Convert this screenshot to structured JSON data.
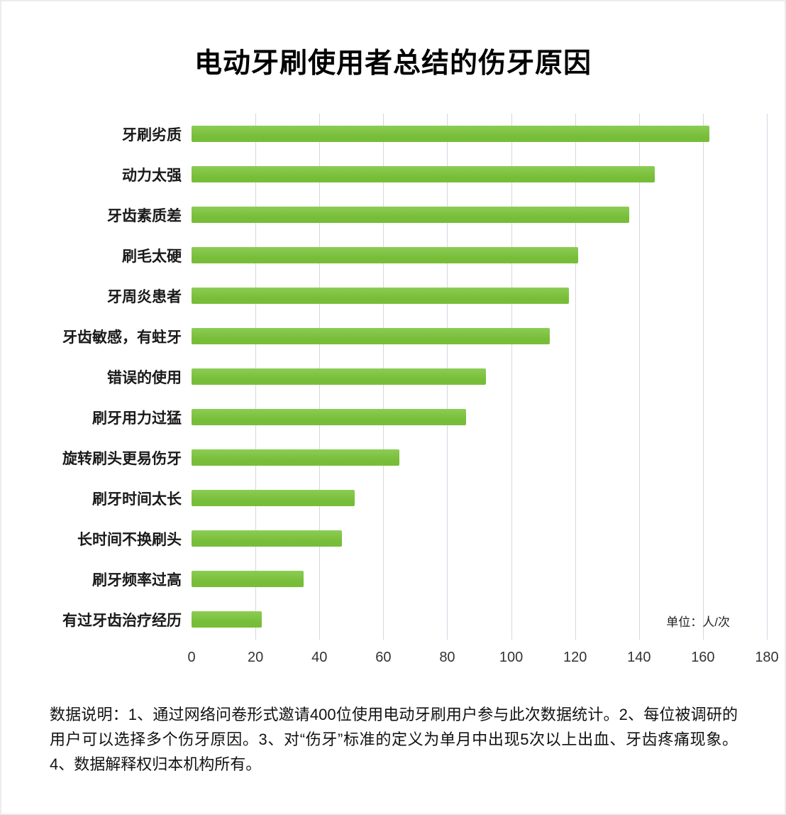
{
  "page": {
    "title": "电动牙刷使用者总结的伤牙原因"
  },
  "chart_data": {
    "type": "bar",
    "orientation": "horizontal",
    "title": "电动牙刷使用者总结的伤牙原因",
    "categories": [
      "牙刷劣质",
      "动力太强",
      "牙齿素质差",
      "刷毛太硬",
      "牙周炎患者",
      "牙齿敏感，有蛀牙",
      "错误的使用",
      "刷牙用力过猛",
      "旋转刷头更易伤牙",
      "刷牙时间太长",
      "长时间不换刷头",
      "刷牙频率过高",
      "有过牙齿治疗经历"
    ],
    "values": [
      162,
      145,
      137,
      121,
      118,
      112,
      92,
      86,
      65,
      51,
      47,
      35,
      22
    ],
    "xlabel": "",
    "ylabel": "",
    "xlim": [
      0,
      180
    ],
    "xticks": [
      0,
      20,
      40,
      60,
      80,
      100,
      120,
      140,
      160,
      180
    ],
    "unit_label": "单位：人/次",
    "grid": true,
    "legend": false,
    "bar_color": "#77bd38",
    "bar_color_light": "#8ccd54",
    "gridline_color": "#d6d6e3"
  },
  "footnote": {
    "text": "数据说明：1、通过网络问卷形式邀请400位使用电动牙刷用户参与此次数据统计。2、每位被调研的用户可以选择多个伤牙原因。3、对“伤牙”标准的定义为单月中出现5次以上出血、牙齿疼痛现象。4、数据解释权归本机构所有。"
  }
}
